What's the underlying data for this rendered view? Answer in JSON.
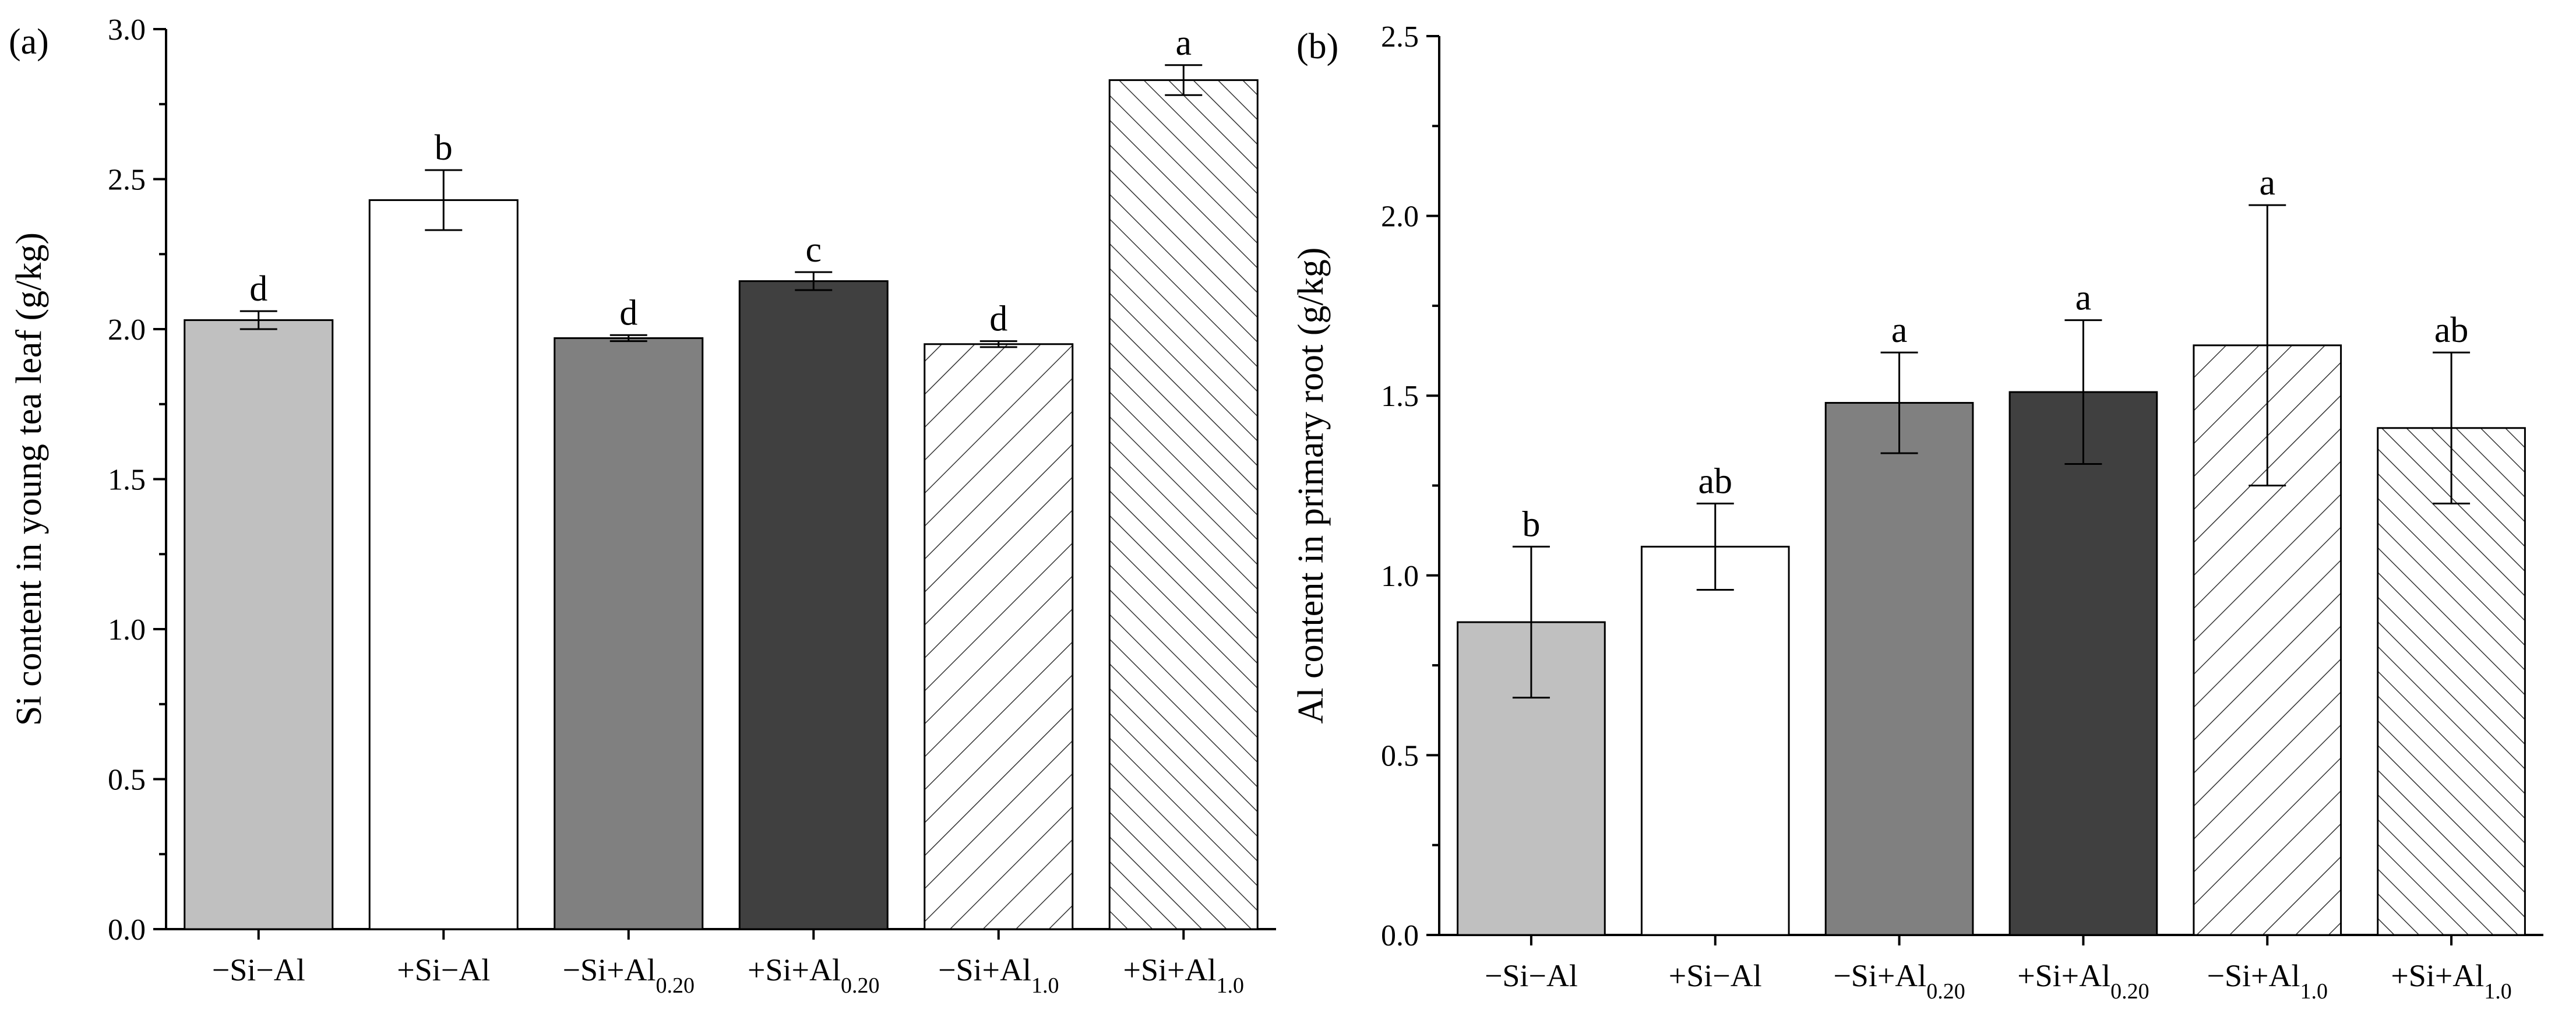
{
  "chart_data": [
    {
      "type": "bar",
      "panel_label": "(a)",
      "ylabel": "Si content in young tea leaf (g/kg)",
      "xlabel": "",
      "ylim": [
        0,
        3.0
      ],
      "yticks": [
        "0.0",
        "0.5",
        "1.0",
        "1.5",
        "2.0",
        "2.5",
        "3.0"
      ],
      "categories": [
        {
          "main": "−Si−Al",
          "sub": ""
        },
        {
          "main": "+Si−Al",
          "sub": ""
        },
        {
          "main": "−Si+Al",
          "sub": "0.20"
        },
        {
          "main": "+Si+Al",
          "sub": "0.20"
        },
        {
          "main": "−Si+Al",
          "sub": "1.0"
        },
        {
          "main": "+Si+Al",
          "sub": "1.0"
        }
      ],
      "values": [
        2.03,
        2.43,
        1.97,
        2.16,
        1.95,
        2.83
      ],
      "errors": [
        0.03,
        0.1,
        0.01,
        0.03,
        0.01,
        0.05
      ],
      "significance": [
        "d",
        "b",
        "d",
        "c",
        "d",
        "a"
      ],
      "fills": [
        "#c0c0c0",
        "#ffffff",
        "#808080",
        "#404040",
        "hatch",
        "hatch-dense"
      ]
    },
    {
      "type": "bar",
      "panel_label": "(b)",
      "ylabel": "Al content in primary root (g/kg)",
      "xlabel": "",
      "ylim": [
        0,
        2.5
      ],
      "yticks": [
        "0.0",
        "0.5",
        "1.0",
        "1.5",
        "2.0",
        "2.5"
      ],
      "categories": [
        {
          "main": "−Si−Al",
          "sub": ""
        },
        {
          "main": "+Si−Al",
          "sub": ""
        },
        {
          "main": "−Si+Al",
          "sub": "0.20"
        },
        {
          "main": "+Si+Al",
          "sub": "0.20"
        },
        {
          "main": "−Si+Al",
          "sub": "1.0"
        },
        {
          "main": "+Si+Al",
          "sub": "1.0"
        }
      ],
      "values": [
        0.87,
        1.08,
        1.48,
        1.51,
        1.64,
        1.41
      ],
      "errors": [
        0.21,
        0.12,
        0.14,
        0.2,
        0.39,
        0.21
      ],
      "significance": [
        "b",
        "ab",
        "a",
        "a",
        "a",
        "ab"
      ],
      "fills": [
        "#c0c0c0",
        "#ffffff",
        "#808080",
        "#404040",
        "hatch",
        "hatch-dense"
      ]
    }
  ]
}
